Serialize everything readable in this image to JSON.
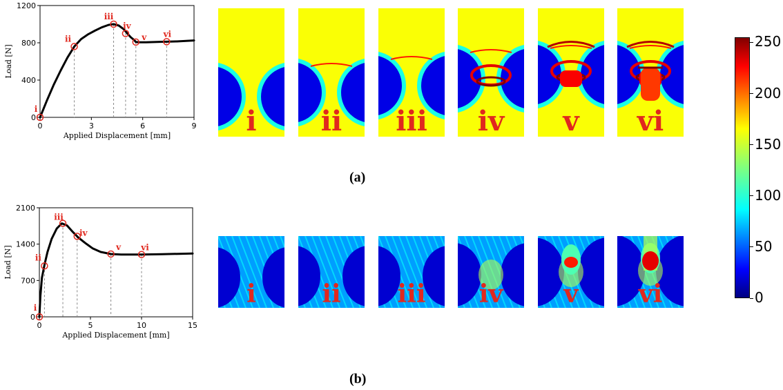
{
  "colors": {
    "curve": "#000000",
    "marker": "#e0281e",
    "guide": "#888888",
    "label": "#e0281e"
  },
  "figure_a": {
    "caption": "(a)",
    "panel_labels": [
      "i",
      "ii",
      "iii",
      "iv",
      "v",
      "vi"
    ]
  },
  "figure_b": {
    "caption": "(b)",
    "panel_labels": [
      "i",
      "ii",
      "iii",
      "iv",
      "v",
      "vi"
    ]
  },
  "colorbar": {
    "colormap": "jet",
    "ticks": [
      "250",
      "200",
      "150",
      "100",
      "50",
      "0"
    ],
    "tick_values": [
      250,
      200,
      150,
      100,
      50,
      0
    ],
    "range": [
      0,
      255
    ]
  },
  "chart_data": [
    {
      "type": "line",
      "xlabel": "Applied Displacement  [mm]",
      "ylabel": "Load  [N]",
      "xlim": [
        0,
        9
      ],
      "ylim": [
        0,
        1200
      ],
      "xticks": [
        0,
        3,
        6,
        9
      ],
      "yticks": [
        0,
        400,
        800,
        1200
      ],
      "grid": false,
      "curve": {
        "x": [
          0,
          0.4,
          0.8,
          1.2,
          1.6,
          2.0,
          2.4,
          2.8,
          3.2,
          3.6,
          4.0,
          4.3,
          4.6,
          4.9,
          5.1,
          5.3,
          5.5,
          5.6,
          5.8,
          6.2,
          7.0,
          7.4,
          8.0,
          9.0
        ],
        "y": [
          0,
          180,
          350,
          500,
          640,
          760,
          840,
          890,
          930,
          965,
          992,
          1000,
          985,
          945,
          900,
          860,
          830,
          808,
          805,
          806,
          810,
          812,
          815,
          825
        ]
      },
      "points": [
        {
          "label": "i",
          "x": 0,
          "y": 0
        },
        {
          "label": "ii",
          "x": 2.0,
          "y": 760
        },
        {
          "label": "iii",
          "x": 4.3,
          "y": 1000
        },
        {
          "label": "iv",
          "x": 5.0,
          "y": 900
        },
        {
          "label": "v",
          "x": 5.6,
          "y": 808
        },
        {
          "label": "vi",
          "x": 7.4,
          "y": 812
        }
      ]
    },
    {
      "type": "line",
      "xlabel": "Applied Displacement  [mm]",
      "ylabel": "Load  [N]",
      "xlim": [
        0,
        15
      ],
      "ylim": [
        0,
        2100
      ],
      "xticks": [
        0,
        5,
        10,
        15
      ],
      "yticks": [
        0,
        700,
        1400,
        2100
      ],
      "grid": false,
      "curve": {
        "x": [
          0,
          0.1,
          0.25,
          0.5,
          0.8,
          1.2,
          1.7,
          2.2,
          2.7,
          3.2,
          3.8,
          4.5,
          5.2,
          6.0,
          7.0,
          8.0,
          9.0,
          10.0,
          12.0,
          15.0
        ],
        "y": [
          0,
          400,
          750,
          1000,
          1250,
          1500,
          1700,
          1800,
          1760,
          1650,
          1530,
          1420,
          1320,
          1250,
          1210,
          1200,
          1200,
          1200,
          1205,
          1220
        ]
      },
      "points": [
        {
          "label": "i",
          "x": 0,
          "y": 0
        },
        {
          "label": "ii",
          "x": 0.5,
          "y": 980
        },
        {
          "label": "iii",
          "x": 2.3,
          "y": 1800
        },
        {
          "label": "iv",
          "x": 3.7,
          "y": 1550
        },
        {
          "label": "v",
          "x": 7.0,
          "y": 1210
        },
        {
          "label": "vi",
          "x": 10.0,
          "y": 1200
        }
      ]
    }
  ]
}
